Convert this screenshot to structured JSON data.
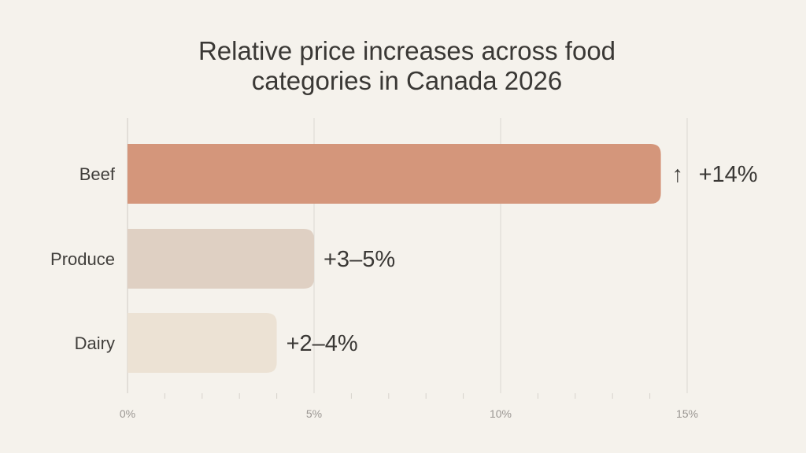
{
  "chart_data": {
    "type": "bar",
    "orientation": "horizontal",
    "title": "Relative price increases across food categories in Canada 2026",
    "title_lines": [
      "Relative price increases across food",
      "categories in Canada 2026"
    ],
    "categories": [
      "Beef",
      "Produce",
      "Dairy"
    ],
    "values": [
      14,
      5,
      4
    ],
    "ranges": [
      [
        14,
        14
      ],
      [
        3,
        5
      ],
      [
        2,
        4
      ]
    ],
    "data_labels": [
      "+14%",
      "+3–5%",
      "+2–4%"
    ],
    "highlight_icon": "arrow-up-icon",
    "highlight_symbol": "↑",
    "colors": [
      "#d4967b",
      "#dfd0c3",
      "#ece2d4"
    ],
    "xlim": [
      0,
      15
    ],
    "xticks": [
      0,
      5,
      10,
      15
    ],
    "xtick_labels": [
      "0%",
      "5%",
      "10%",
      "15%"
    ],
    "minor_tick_step": 1,
    "grid": true,
    "xlabel": "",
    "ylabel": "",
    "background": "#f5f2ec"
  }
}
